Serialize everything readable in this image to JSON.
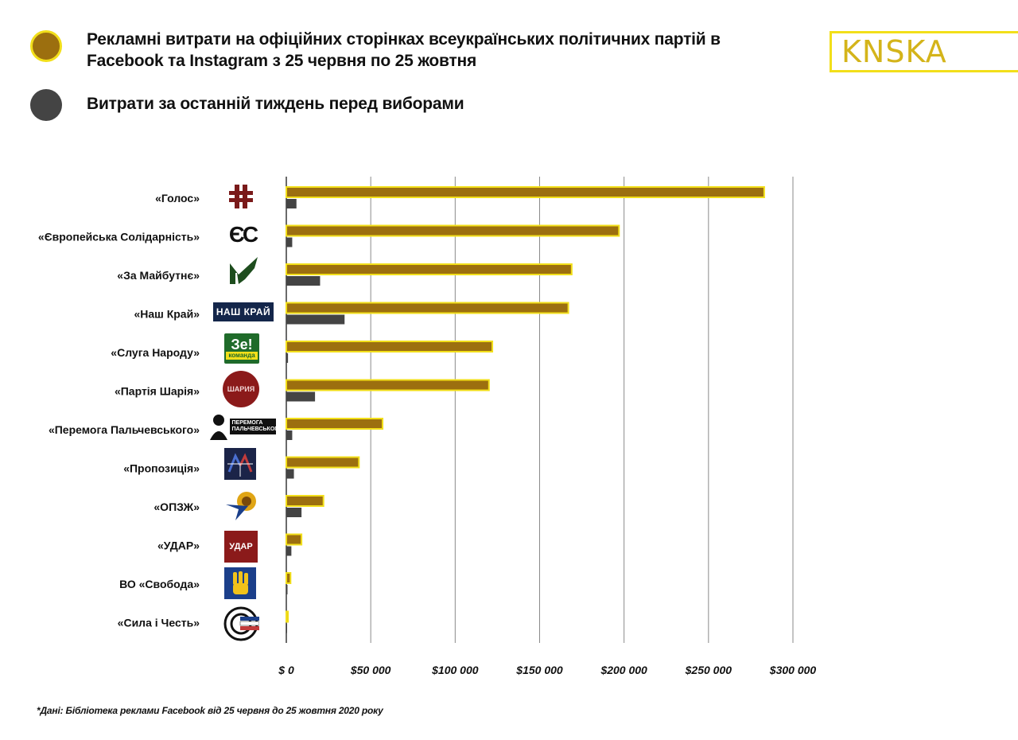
{
  "legend": {
    "total_label": "Рекламні витрати на офіційних сторінках всеукраїнських політичних партій в Facebook та Instagram з 25 червня по 25 жовтня",
    "week_label": "Витрати за останній тиждень перед виборами",
    "total_color": "#9c6f0f",
    "week_color": "#444444"
  },
  "brand": {
    "name": "KNSKA",
    "color": "#d4b41a",
    "border_color": "#f2df1a"
  },
  "chart_data": {
    "type": "bar",
    "orientation": "horizontal",
    "title": "",
    "xlabel": "",
    "ylabel": "",
    "xlim": [
      0,
      300000
    ],
    "grid": true,
    "legend_position": "top-left",
    "x_tick_labels": [
      "$ 0",
      "$50 000",
      "$100 000",
      "$150 000",
      "$200 000",
      "$250 000",
      "$300 000"
    ],
    "x_ticks": [
      0,
      50000,
      100000,
      150000,
      200000,
      250000,
      300000
    ],
    "categories": [
      "«Голос»",
      "«Європейська Солідарність»",
      "«За Майбутнє»",
      "«Наш Край»",
      "«Слуга Народу»",
      "«Партія Шарія»",
      "«Перемога Пальчевського»",
      "«Пропозиція»",
      "«ОПЗЖ»",
      "«УДАР»",
      "ВО «Свобода»",
      "«Сила і Честь»"
    ],
    "series": [
      {
        "name": "Рекламні витрати на офіційних сторінках всеукраїнських політичних партій в Facebook та Instagram з 25 червня по 25 жовтня",
        "color": "#9c6f0f",
        "outline": "#f2df1a",
        "values": [
          283000,
          197000,
          169000,
          167000,
          122000,
          120000,
          57000,
          43000,
          22000,
          9000,
          2500,
          1000
        ]
      },
      {
        "name": "Витрати за останній тиждень перед виборами",
        "color": "#444444",
        "values": [
          6000,
          3500,
          20000,
          34500,
          1000,
          17000,
          3500,
          4500,
          9000,
          3000,
          700,
          300
        ]
      }
    ]
  },
  "logos": [
    {
      "name": "golos-logo",
      "text": ""
    },
    {
      "name": "es-logo",
      "text": "ЄС"
    },
    {
      "name": "za-maibutne-logo",
      "text": ""
    },
    {
      "name": "nash-krai-logo",
      "text": "НАШ КРАЙ"
    },
    {
      "name": "sluha-narodu-logo",
      "text": "Зе!",
      "subtext": "команда"
    },
    {
      "name": "shariy-logo",
      "text": "ШАРИЯ"
    },
    {
      "name": "palchevsky-logo",
      "text": "ПЕРЕМОГА ПАЛЬЧЕВСЬКОГО"
    },
    {
      "name": "propozytsiia-logo",
      "text": ""
    },
    {
      "name": "opzzh-logo",
      "text": ""
    },
    {
      "name": "udar-logo",
      "text": "УДАР"
    },
    {
      "name": "svoboda-logo",
      "text": ""
    },
    {
      "name": "syla-i-chest-logo",
      "text": ""
    }
  ],
  "footnote": "*Дані: Бібліотека реклами Facebook від 25 червня до 25 жовтня 2020 року"
}
